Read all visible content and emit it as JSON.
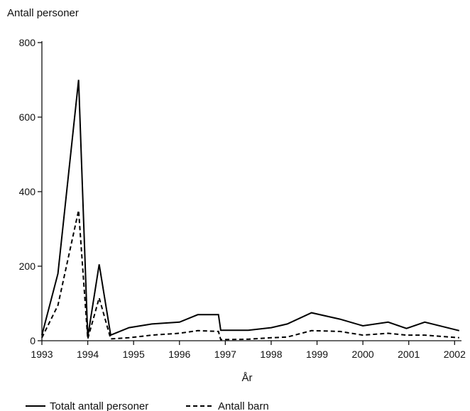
{
  "chart_data": {
    "type": "line",
    "title": "",
    "ylabel": "Antall personer",
    "xlabel": "År",
    "xlim": [
      1993,
      2002.15
    ],
    "ylim": [
      0,
      800
    ],
    "x_ticks": [
      "1993",
      "1994",
      "1995",
      "1996",
      "1997",
      "1998",
      "1999",
      "2000",
      "2001",
      "2002"
    ],
    "y_ticks": [
      "0",
      "200",
      "400",
      "600",
      "800"
    ],
    "grid": false,
    "legend_position": "bottom-left",
    "series": [
      {
        "name": "Totalt antall personer",
        "style": "solid",
        "color": "#000000",
        "x": [
          1993.0,
          1993.35,
          1993.8,
          1994.0,
          1994.25,
          1994.5,
          1994.9,
          1995.4,
          1996.0,
          1996.4,
          1996.85,
          1996.9,
          1997.5,
          1998.0,
          1998.35,
          1998.88,
          1999.5,
          2000.0,
          2000.55,
          2000.95,
          2001.35,
          2002.1
        ],
        "y": [
          15,
          180,
          700,
          10,
          205,
          15,
          35,
          45,
          50,
          70,
          70,
          28,
          28,
          35,
          45,
          75,
          58,
          40,
          50,
          33,
          50,
          27
        ]
      },
      {
        "name": "Antall barn",
        "style": "dashed",
        "color": "#000000",
        "x": [
          1993.0,
          1993.35,
          1993.8,
          1994.0,
          1994.25,
          1994.5,
          1994.9,
          1995.4,
          1996.0,
          1996.4,
          1996.85,
          1996.9,
          1997.5,
          1998.0,
          1998.35,
          1998.88,
          1999.5,
          2000.0,
          2000.55,
          2000.95,
          2001.35,
          2002.1
        ],
        "y": [
          8,
          95,
          350,
          5,
          115,
          5,
          8,
          15,
          20,
          27,
          25,
          3,
          4,
          8,
          10,
          27,
          25,
          15,
          20,
          15,
          15,
          8
        ]
      }
    ]
  }
}
